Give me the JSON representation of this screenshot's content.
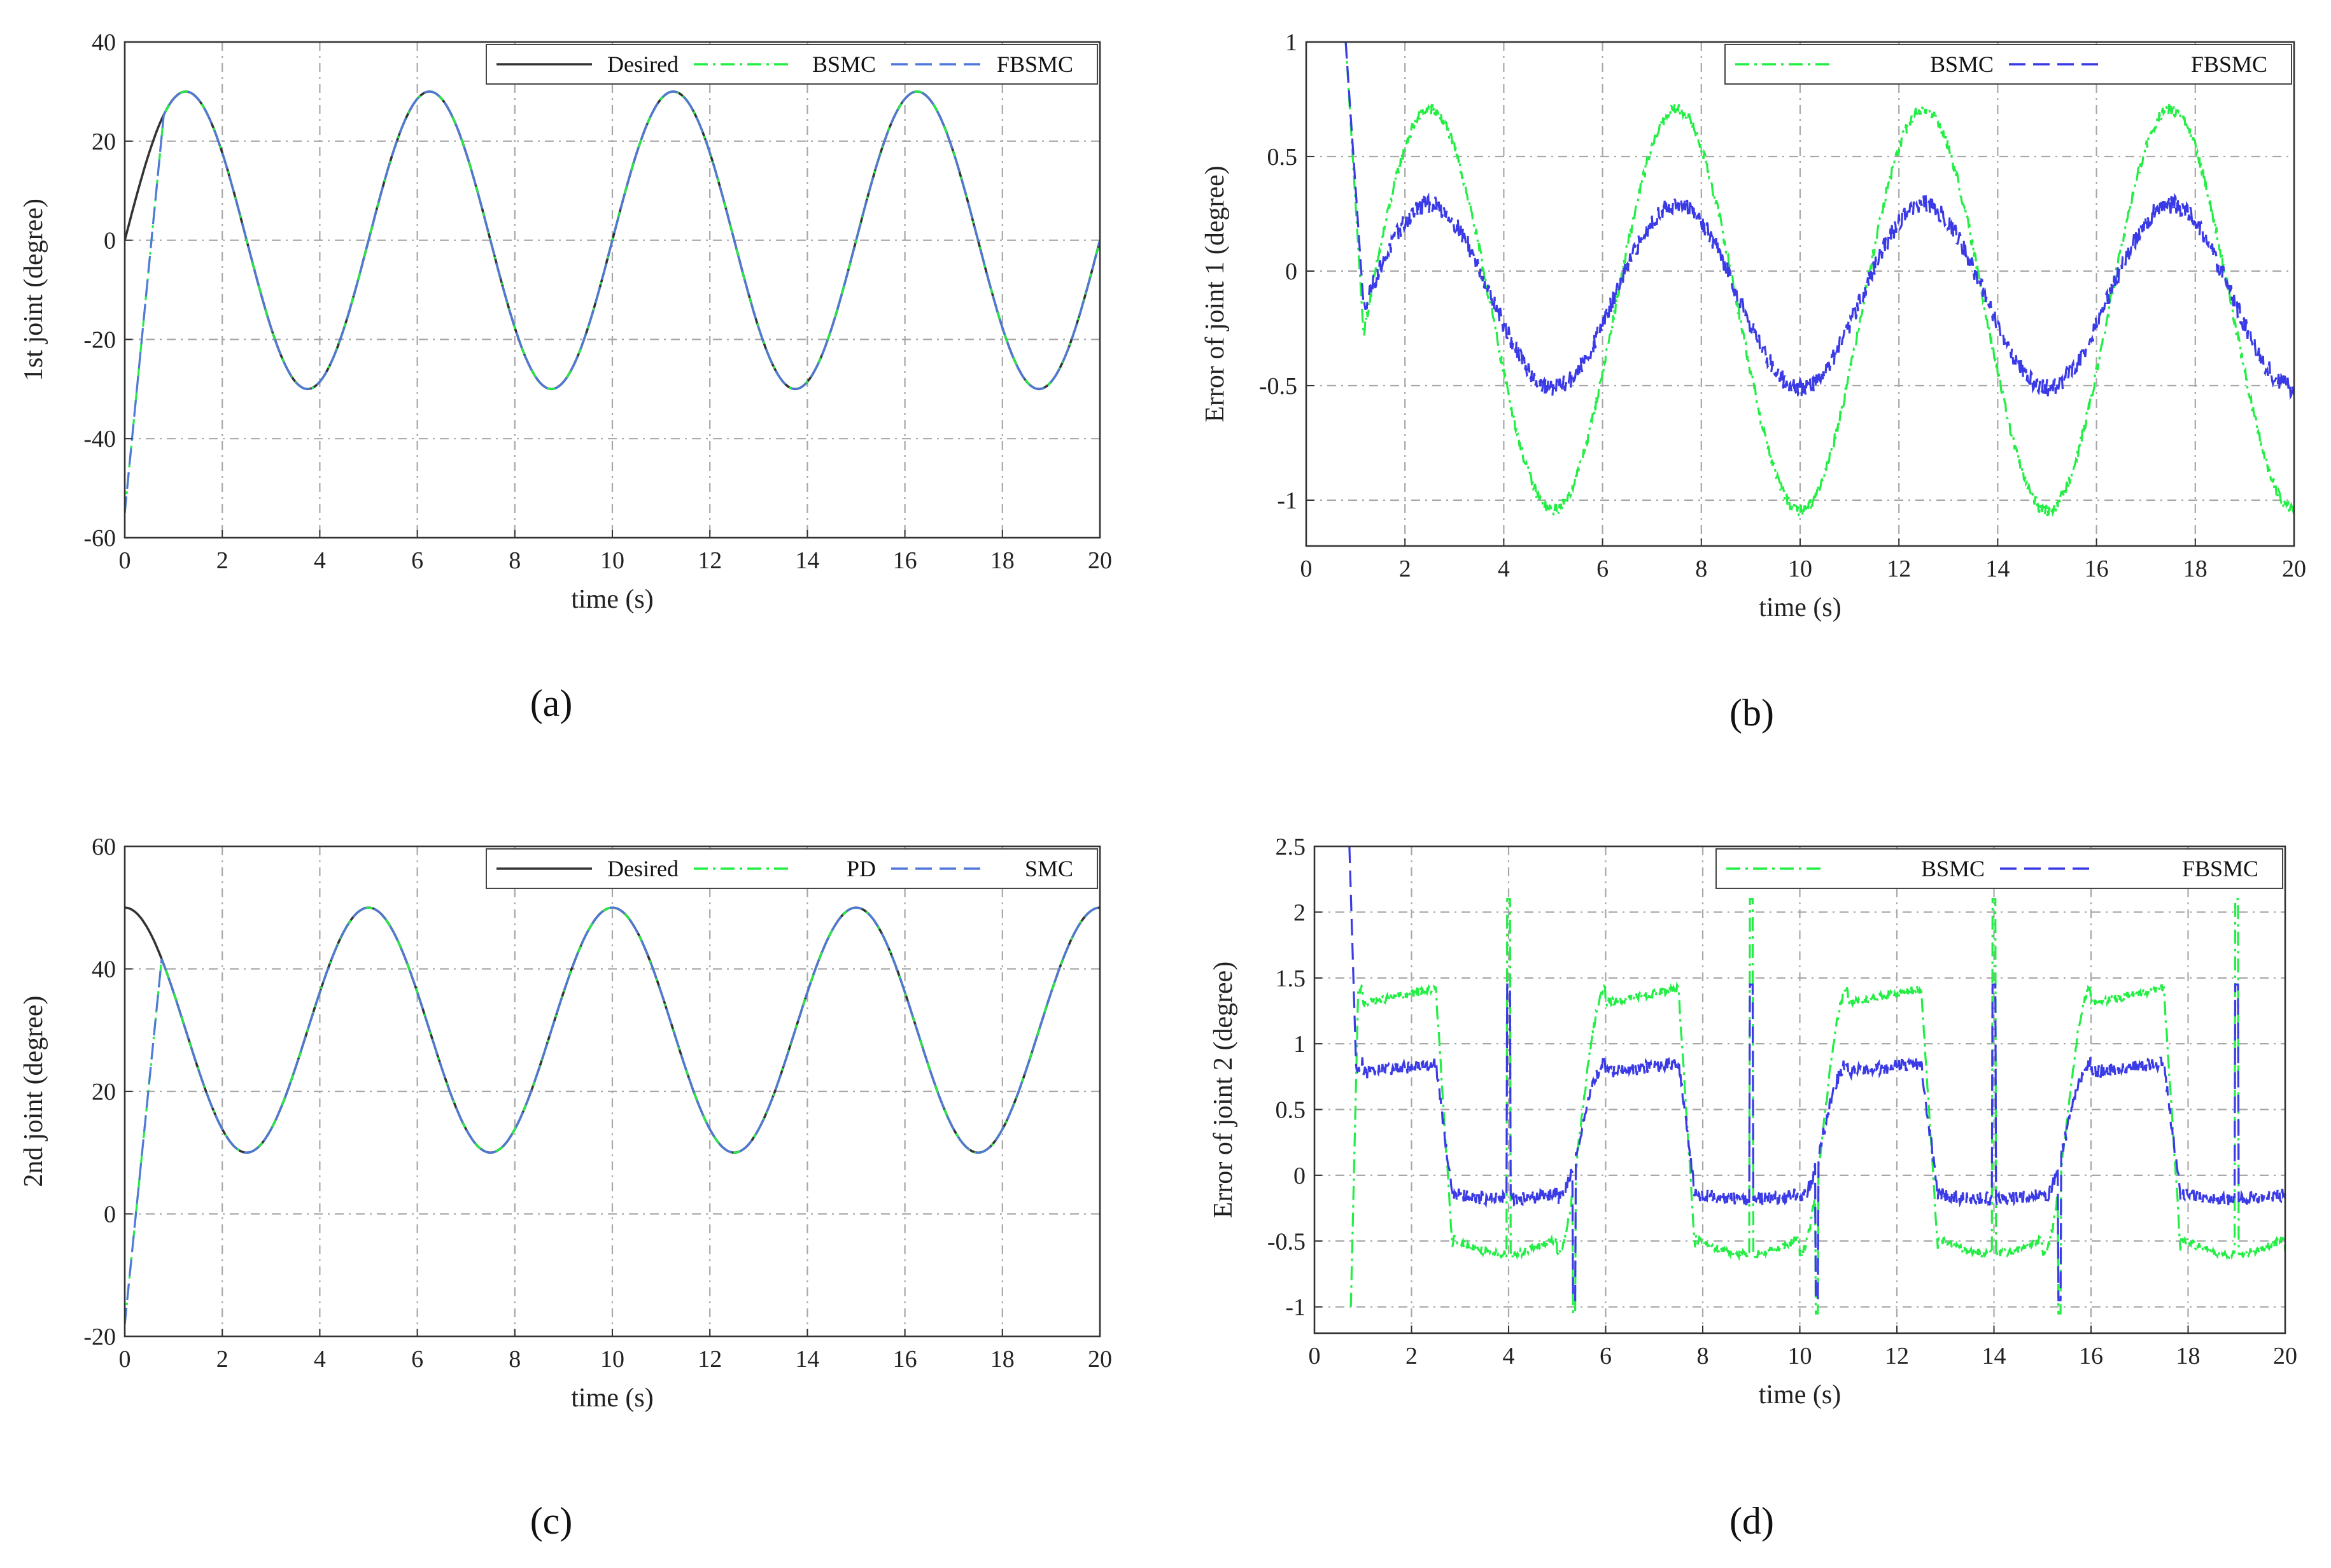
{
  "colors": {
    "desired": "#333333",
    "bsmc": "#22ee44",
    "fbsmc": "#3a3ae6",
    "fbsmc_a": "#4f78d8"
  },
  "chart_data": [
    {
      "id": "a",
      "type": "line",
      "panel_label": "(a)",
      "xlabel": "time (s)",
      "ylabel": "1st joint (degree)",
      "xlim": [
        0,
        20
      ],
      "ylim": [
        -60,
        40
      ],
      "xticks": [
        0,
        2,
        4,
        6,
        8,
        10,
        12,
        14,
        16,
        18,
        20
      ],
      "yticks": [
        -60,
        -40,
        -20,
        0,
        20,
        40
      ],
      "legend_position": "top-right",
      "series": [
        {
          "name": "Desired",
          "style": "solid",
          "color_key": "desired",
          "model": {
            "kind": "sine",
            "amp": 30,
            "period": 5,
            "phase": 0,
            "offset": 0
          }
        },
        {
          "name": "BSMC",
          "style": "dashdot",
          "color_key": "bsmc",
          "model": {
            "kind": "sine",
            "amp": 30,
            "period": 5,
            "phase": 0,
            "offset": 0,
            "start": [
              0,
              -55
            ],
            "join": 0.8
          }
        },
        {
          "name": "FBSMC",
          "style": "dashed",
          "color_key": "fbsmc_a",
          "model": {
            "kind": "sine",
            "amp": 30,
            "period": 5,
            "phase": 0,
            "offset": 0,
            "start": [
              0,
              -55
            ],
            "join": 0.8
          }
        }
      ]
    },
    {
      "id": "b",
      "type": "line",
      "panel_label": "(b)",
      "xlabel": "time (s)",
      "ylabel": "Error of joint 1 (degree)",
      "xlim": [
        0,
        20
      ],
      "ylim": [
        -1.2,
        1
      ],
      "xticks": [
        0,
        2,
        4,
        6,
        8,
        10,
        12,
        14,
        16,
        18,
        20
      ],
      "yticks": [
        -1,
        -0.5,
        0,
        0.5,
        1
      ],
      "legend_position": "top-right",
      "series": [
        {
          "name": "BSMC",
          "style": "dashdot",
          "color_key": "bsmc",
          "model": {
            "kind": "sine",
            "amp": 0.875,
            "period": 5,
            "phase": 1.25,
            "offset": -0.17,
            "start": [
              0.8,
              1.0
            ],
            "join": 1.15,
            "noise": 0.025
          }
        },
        {
          "name": "FBSMC",
          "style": "dashed",
          "color_key": "fbsmc",
          "model": {
            "kind": "sine",
            "amp": 0.4,
            "period": 5,
            "phase": 1.25,
            "offset": -0.11,
            "start": [
              0.8,
              1.0
            ],
            "join": 1.15,
            "noise": 0.04
          }
        }
      ]
    },
    {
      "id": "c",
      "type": "line",
      "panel_label": "(c)",
      "xlabel": "time (s)",
      "ylabel": "2nd joint (degree)",
      "xlim": [
        0,
        20
      ],
      "ylim": [
        -20,
        60
      ],
      "xticks": [
        0,
        2,
        4,
        6,
        8,
        10,
        12,
        14,
        16,
        18,
        20
      ],
      "yticks": [
        -20,
        0,
        20,
        40,
        60
      ],
      "legend_position": "top-right",
      "series": [
        {
          "name": "Desired",
          "style": "solid",
          "color_key": "desired",
          "model": {
            "kind": "cosine",
            "amp": 20,
            "period": 5,
            "offset": 30
          }
        },
        {
          "name": "PD",
          "style": "dashdot",
          "color_key": "bsmc",
          "model": {
            "kind": "cosine",
            "amp": 20,
            "period": 5,
            "offset": 30,
            "start": [
              0,
              -18
            ],
            "join": 0.75
          }
        },
        {
          "name": "SMC",
          "style": "dashed",
          "color_key": "fbsmc_a",
          "model": {
            "kind": "cosine",
            "amp": 20,
            "period": 5,
            "offset": 30,
            "start": [
              0,
              -18
            ],
            "join": 0.75
          }
        }
      ]
    },
    {
      "id": "d",
      "type": "line",
      "panel_label": "(d)",
      "xlabel": "time (s)",
      "ylabel": "Error of joint 2 (degree)",
      "xlim": [
        0,
        20
      ],
      "ylim": [
        -1.2,
        2.5
      ],
      "xticks": [
        0,
        2,
        4,
        6,
        8,
        10,
        12,
        14,
        16,
        18,
        20
      ],
      "yticks": [
        -1,
        -0.5,
        0,
        0.5,
        1,
        1.5,
        2,
        2.5
      ],
      "legend_position": "top-right",
      "series": [
        {
          "name": "BSMC",
          "style": "dashdot",
          "color_key": "bsmc",
          "model": {
            "kind": "square",
            "high": 1.42,
            "low": -0.6,
            "period": 5,
            "rise": 2.5,
            "fall": 5.3,
            "spike_up": 2.1,
            "spike_down": -1.05,
            "start": [
              0.75,
              -1.0
            ],
            "join": 0.9,
            "noise": 0.03
          }
        },
        {
          "name": "FBSMC",
          "style": "dashed",
          "color_key": "fbsmc",
          "model": {
            "kind": "square",
            "high": 0.85,
            "low": -0.18,
            "period": 5,
            "rise": 2.5,
            "fall": 5.3,
            "spike_up": 1.45,
            "spike_down": -0.95,
            "start": [
              0.72,
              2.5
            ],
            "join": 0.85,
            "noise": 0.05
          }
        }
      ]
    }
  ]
}
